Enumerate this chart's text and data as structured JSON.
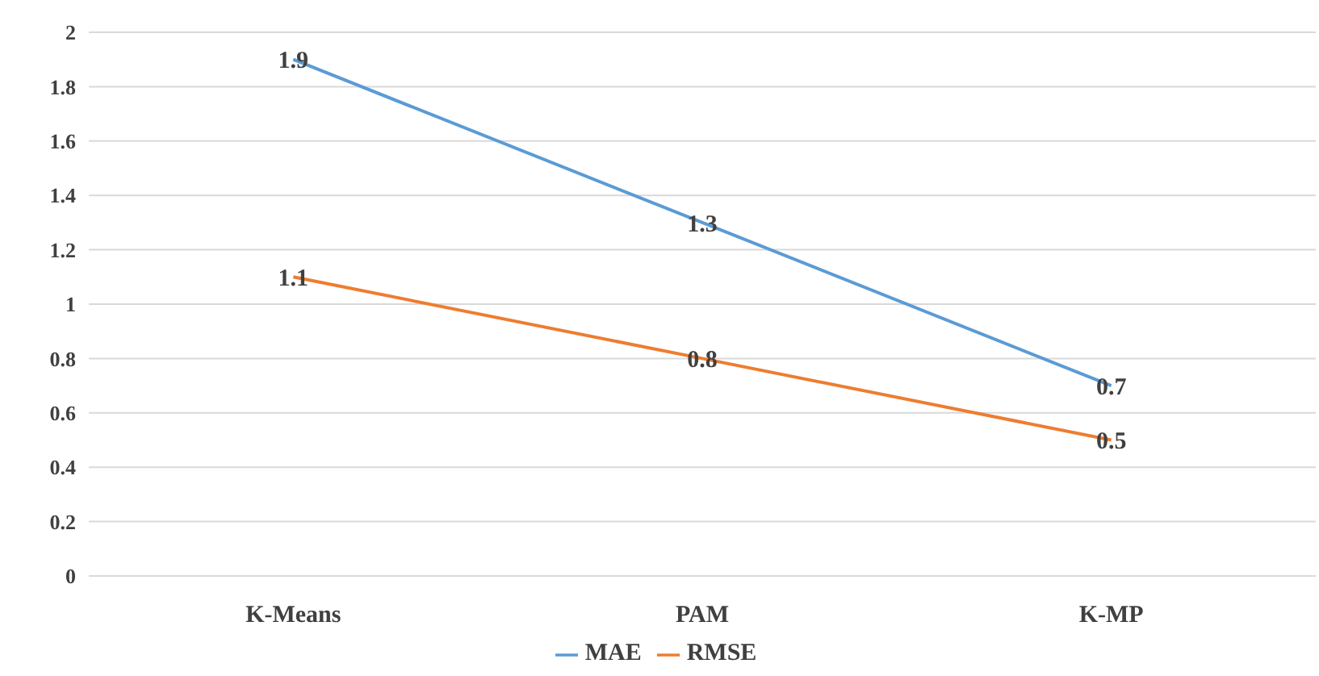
{
  "chart_data": {
    "type": "line",
    "categories": [
      "K-Means",
      "PAM",
      "K-MP"
    ],
    "series": [
      {
        "name": "MAE",
        "color": "#5b9bd5",
        "values": [
          1.9,
          1.3,
          0.7
        ]
      },
      {
        "name": "RMSE",
        "color": "#ed7d31",
        "values": [
          1.1,
          0.8,
          0.5
        ]
      }
    ],
    "ylim": [
      0,
      2
    ],
    "yticks": [
      0,
      0.2,
      0.4,
      0.6,
      0.8,
      1,
      1.2,
      1.4,
      1.6,
      1.8,
      2
    ],
    "grid": "y",
    "legend": "bottom",
    "marker": "none",
    "line_style": "solid",
    "data_labels": true
  }
}
